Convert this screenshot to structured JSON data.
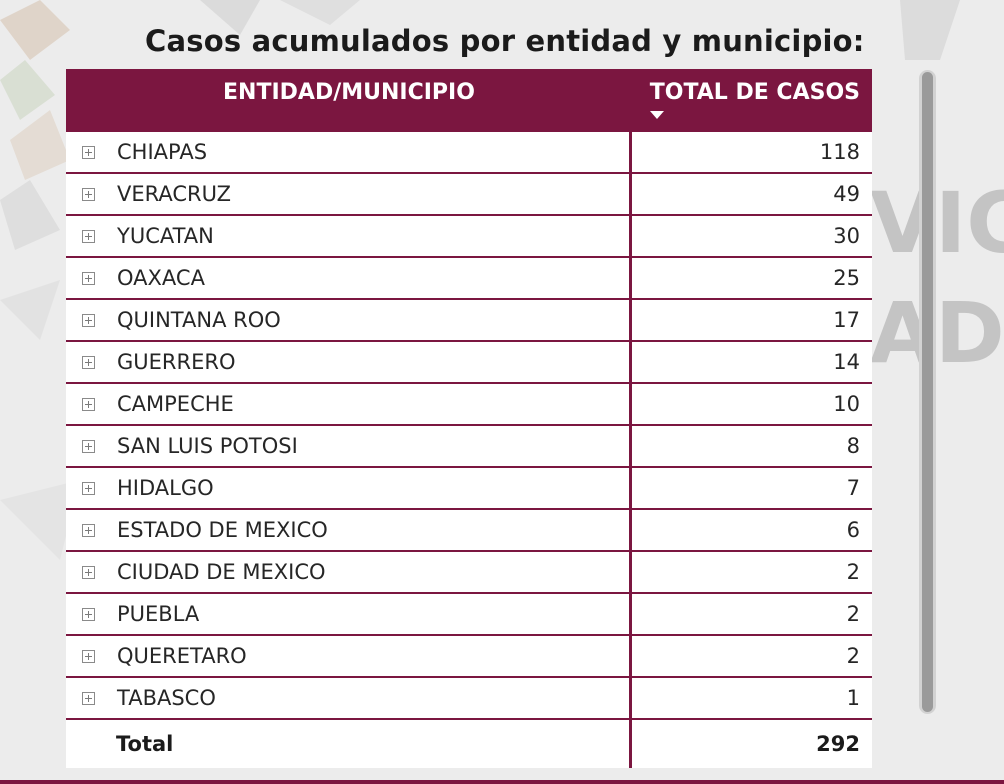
{
  "title": "Casos acumulados por entidad y municipio:",
  "watermark": {
    "letters_right": [
      "VIC",
      "AD"
    ]
  },
  "table": {
    "headers": {
      "entity": "ENTIDAD/MUNICIPIO",
      "total": "TOTAL DE CASOS"
    },
    "sort": "descending",
    "rows": [
      {
        "entity": "CHIAPAS",
        "total": "118"
      },
      {
        "entity": "VERACRUZ",
        "total": "49"
      },
      {
        "entity": "YUCATAN",
        "total": "30"
      },
      {
        "entity": "OAXACA",
        "total": "25"
      },
      {
        "entity": "QUINTANA ROO",
        "total": "17"
      },
      {
        "entity": "GUERRERO",
        "total": "14"
      },
      {
        "entity": "CAMPECHE",
        "total": "10"
      },
      {
        "entity": "SAN LUIS POTOSI",
        "total": "8"
      },
      {
        "entity": "HIDALGO",
        "total": "7"
      },
      {
        "entity": "ESTADO DE MEXICO",
        "total": "6"
      },
      {
        "entity": "CIUDAD DE MEXICO",
        "total": "2"
      },
      {
        "entity": "PUEBLA",
        "total": "2"
      },
      {
        "entity": "QUERETARO",
        "total": "2"
      },
      {
        "entity": "TABASCO",
        "total": "1"
      }
    ],
    "footer": {
      "label": "Total",
      "total": "292"
    }
  },
  "colors": {
    "header_bg": "#7b1640",
    "header_text": "#ffffff",
    "row_bg": "#ffffff",
    "divider": "#7b1640"
  },
  "icons": {
    "expand": "plus-box-icon",
    "sort": "triangle-down-icon"
  }
}
